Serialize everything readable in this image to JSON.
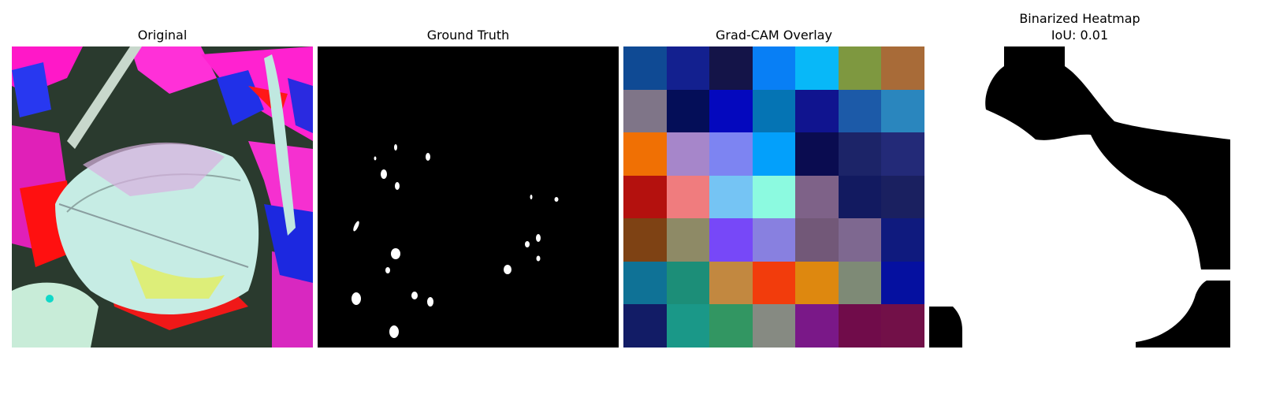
{
  "panels": {
    "original": {
      "title": "Original"
    },
    "ground_truth": {
      "title": "Ground Truth"
    },
    "gradcam": {
      "title": "Grad-CAM Overlay",
      "grid_colors": [
        [
          "#0f4a94",
          "#13208f",
          "#141448",
          "#087ff5",
          "#08b8f8",
          "#7e9840",
          "#a86b38"
        ],
        [
          "#7f7588",
          "#040e58",
          "#0408be",
          "#0574b4",
          "#10148f",
          "#1c5aa8",
          "#2a86be"
        ],
        [
          "#f07004",
          "#a686ca",
          "#7d84f2",
          "#03a0fb",
          "#0a0c50",
          "#1c2468",
          "#232a78"
        ],
        [
          "#b4110e",
          "#f07c7e",
          "#75c4f4",
          "#8cfae0",
          "#7e6288",
          "#121a60",
          "#1a2060"
        ],
        [
          "#7e4214",
          "#8e8a66",
          "#7748f8",
          "#8880e0",
          "#725878",
          "#7e6890",
          "#0f1a7e"
        ],
        [
          "#0f7296",
          "#1c8e78",
          "#c28840",
          "#f23c0c",
          "#de880f",
          "#7e8a76",
          "#0510a0"
        ],
        [
          "#121c66",
          "#1a9888",
          "#329662",
          "#868a82",
          "#7a1888",
          "#700c4a",
          "#721048"
        ]
      ]
    },
    "binarized": {
      "title": "Binarized Heatmap",
      "subtitle": "IoU: 0.01"
    }
  }
}
